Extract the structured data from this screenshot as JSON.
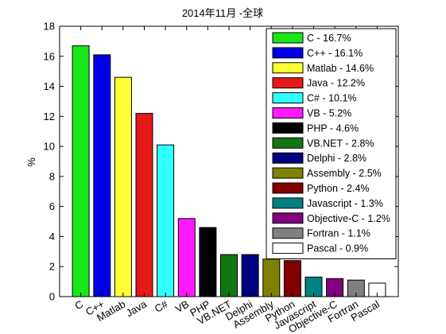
{
  "chart_data": {
    "type": "bar",
    "title": "2014年11月 -全球",
    "xlabel": "",
    "ylabel": "%",
    "ylim": [
      0,
      18
    ],
    "yticks": [
      "0",
      "2",
      "4",
      "6",
      "8",
      "10",
      "12",
      "14",
      "16",
      "18"
    ],
    "grid": false,
    "legend_position": "top-right",
    "categories": [
      "C",
      "C++",
      "Matlab",
      "Java",
      "C#",
      "VB",
      "PHP",
      "VB.NET",
      "Delphi",
      "Assembly",
      "Python",
      "Javascript",
      "Objective-C",
      "Fortran",
      "Pascal"
    ],
    "values": [
      16.7,
      16.1,
      14.6,
      12.2,
      10.1,
      5.2,
      4.6,
      2.8,
      2.8,
      2.5,
      2.4,
      1.3,
      1.2,
      1.1,
      0.9
    ],
    "colors": [
      "#19e619",
      "#0000e6",
      "#ffff33",
      "#e61919",
      "#33ffff",
      "#ff19ff",
      "#000000",
      "#117711",
      "#000080",
      "#808000",
      "#800000",
      "#008080",
      "#800080",
      "#808080",
      "#ffffff"
    ],
    "legend": [
      "C - 16.7%",
      "C++ - 16.1%",
      "Matlab - 14.6%",
      "Java - 12.2%",
      "C# - 10.1%",
      "VB - 5.2%",
      "PHP - 4.6%",
      "VB.NET - 2.8%",
      "Delphi - 2.8%",
      "Assembly - 2.5%",
      "Python - 2.4%",
      "Javascript - 1.3%",
      "Objective-C - 1.2%",
      "Fortran - 1.1%",
      "Pascal - 0.9%"
    ]
  }
}
